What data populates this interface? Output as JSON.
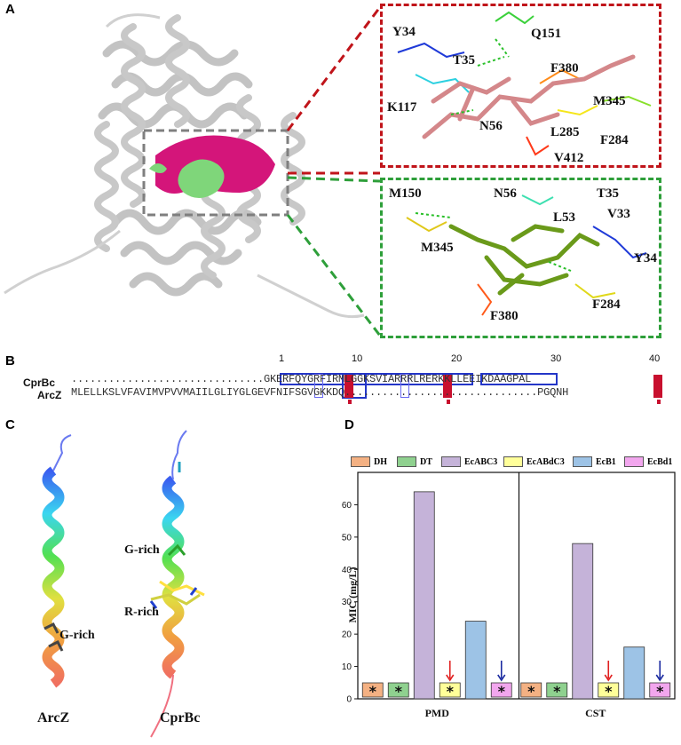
{
  "panels": {
    "a": "A",
    "b": "B",
    "c": "C",
    "d": "D"
  },
  "panel_a": {
    "red_box_residues": [
      "Y34",
      "Q151",
      "T35",
      "F380",
      "K117",
      "M345",
      "N56",
      "L285",
      "F284",
      "V412"
    ],
    "green_box_residues": [
      "M150",
      "N56",
      "T35",
      "L53",
      "V33",
      "M345",
      "Y34",
      "F284",
      "F380"
    ],
    "colors": {
      "red_box": "#c0141a",
      "green_box": "#2e9f3a",
      "pocket_magenta": "#d4157a",
      "ligand_green": "#7fd67a"
    }
  },
  "panel_b": {
    "numbers": [
      "1",
      "10",
      "20",
      "30",
      "40"
    ],
    "rows": [
      {
        "name": "CprBc",
        "sequence": "...............................GKERFQYGRFIRMLGGKSVIARRRLRERKKLLEEIKDAAGPAL"
      },
      {
        "name": "ArcZ",
        "sequence": "MLELLKSLVFAVIMVPVVMAIILGLIYGLGEVFNIFSGVGKKDQ...............................PGQNH"
      }
    ]
  },
  "panel_c": {
    "arcz_label": "ArcZ",
    "cprbc_label": "CprBc",
    "annotations": [
      "G-rich",
      "G-rich",
      "R-rich"
    ]
  },
  "chart_data": {
    "type": "bar",
    "title": "",
    "xlabel": "",
    "ylabel": "MIC (mg/L)",
    "ylim": [
      0,
      70
    ],
    "yticks": [
      0,
      10,
      20,
      30,
      40,
      50,
      60
    ],
    "groups": [
      "PMD",
      "CST"
    ],
    "series": [
      {
        "name": "DH",
        "color": "#f4b183",
        "values": [
          0,
          0
        ]
      },
      {
        "name": "DT",
        "color": "#8fd18f",
        "values": [
          0,
          0
        ]
      },
      {
        "name": "EcABC3",
        "color": "#c5b3d9",
        "values": [
          64,
          48
        ]
      },
      {
        "name": "EcABdC3",
        "color": "#ffff99",
        "values": [
          0,
          0
        ]
      },
      {
        "name": "EcB1",
        "color": "#9dc3e6",
        "values": [
          24,
          16
        ]
      },
      {
        "name": "EcBd1",
        "color": "#f2a6ee",
        "values": [
          0,
          0
        ]
      }
    ],
    "zero_marker": "*",
    "arrows": [
      {
        "group": "PMD",
        "series": "EcABdC3",
        "color": "#e02020"
      },
      {
        "group": "PMD",
        "series": "EcBd1",
        "color": "#1a2aa0"
      },
      {
        "group": "CST",
        "series": "EcABdC3",
        "color": "#e02020"
      },
      {
        "group": "CST",
        "series": "EcBd1",
        "color": "#1a2aa0"
      }
    ],
    "legend_position": "top"
  }
}
